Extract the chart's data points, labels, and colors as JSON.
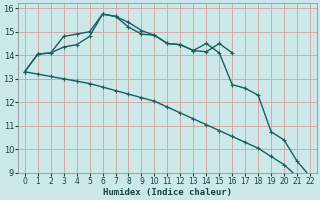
{
  "xlabel": "Humidex (Indice chaleur)",
  "background_color": "#cce8e8",
  "grid_color": "#d4a0a0",
  "line_color": "#1a6060",
  "xlim": [
    -0.5,
    22.5
  ],
  "ylim": [
    9,
    16.2
  ],
  "yticks": [
    9,
    10,
    11,
    12,
    13,
    14,
    15,
    16
  ],
  "xticks": [
    0,
    1,
    2,
    3,
    4,
    5,
    6,
    7,
    8,
    9,
    10,
    11,
    12,
    13,
    14,
    15,
    16,
    17,
    18,
    19,
    20,
    21,
    22
  ],
  "line1_x": [
    0,
    1,
    2,
    3,
    4,
    5,
    6,
    7,
    8,
    9,
    10,
    11,
    12,
    13,
    14,
    15,
    16
  ],
  "line1_y": [
    13.3,
    14.05,
    14.1,
    14.8,
    14.9,
    15.0,
    15.75,
    15.65,
    15.4,
    15.05,
    14.85,
    14.5,
    14.45,
    14.2,
    14.15,
    14.5,
    14.1
  ],
  "line2_x": [
    0,
    1,
    2,
    3,
    4,
    5,
    6,
    7,
    8,
    9,
    10,
    11,
    12,
    13,
    14,
    15,
    16,
    17,
    18,
    19,
    20,
    21,
    22
  ],
  "line2_y": [
    13.3,
    14.05,
    14.1,
    14.35,
    14.45,
    14.8,
    15.75,
    15.65,
    15.2,
    14.9,
    14.85,
    14.5,
    14.45,
    14.2,
    14.5,
    14.1,
    12.75,
    12.6,
    12.3,
    10.75,
    10.4,
    9.5,
    8.85
  ],
  "line3_x": [
    0,
    1,
    2,
    3,
    4,
    5,
    6,
    7,
    8,
    9,
    10,
    11,
    12,
    13,
    14,
    15,
    16,
    17,
    18,
    19,
    20,
    21,
    22
  ],
  "line3_y": [
    13.3,
    13.2,
    13.1,
    13.0,
    12.9,
    12.8,
    12.65,
    12.5,
    12.35,
    12.2,
    12.05,
    11.8,
    11.55,
    11.3,
    11.05,
    10.8,
    10.55,
    10.3,
    10.05,
    9.7,
    9.35,
    8.85,
    8.75
  ]
}
